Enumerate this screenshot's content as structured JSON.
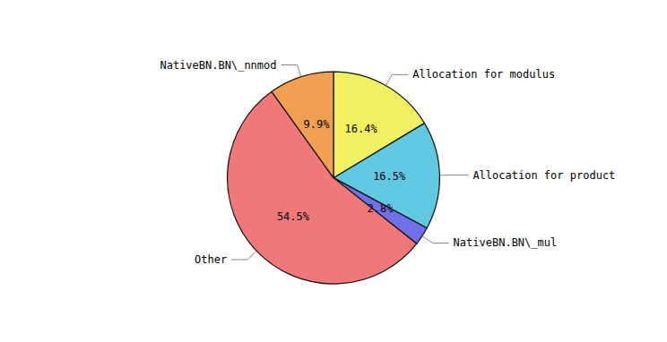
{
  "chart_data": {
    "type": "pie",
    "categories": [
      "Allocation for modulus",
      "Allocation for product",
      "NativeBN.BN\\_mul",
      "Other",
      "NativeBN.BN\\_nnmod"
    ],
    "values": [
      16.4,
      16.5,
      2.8,
      54.5,
      9.9
    ],
    "value_labels": [
      "16.4%",
      "16.5%",
      "2.8%",
      "54.5%",
      "9.9%"
    ],
    "colors": [
      "#f0f060",
      "#60c8e0",
      "#7070e8",
      "#f07878",
      "#f0a050"
    ],
    "data_labels": true
  }
}
